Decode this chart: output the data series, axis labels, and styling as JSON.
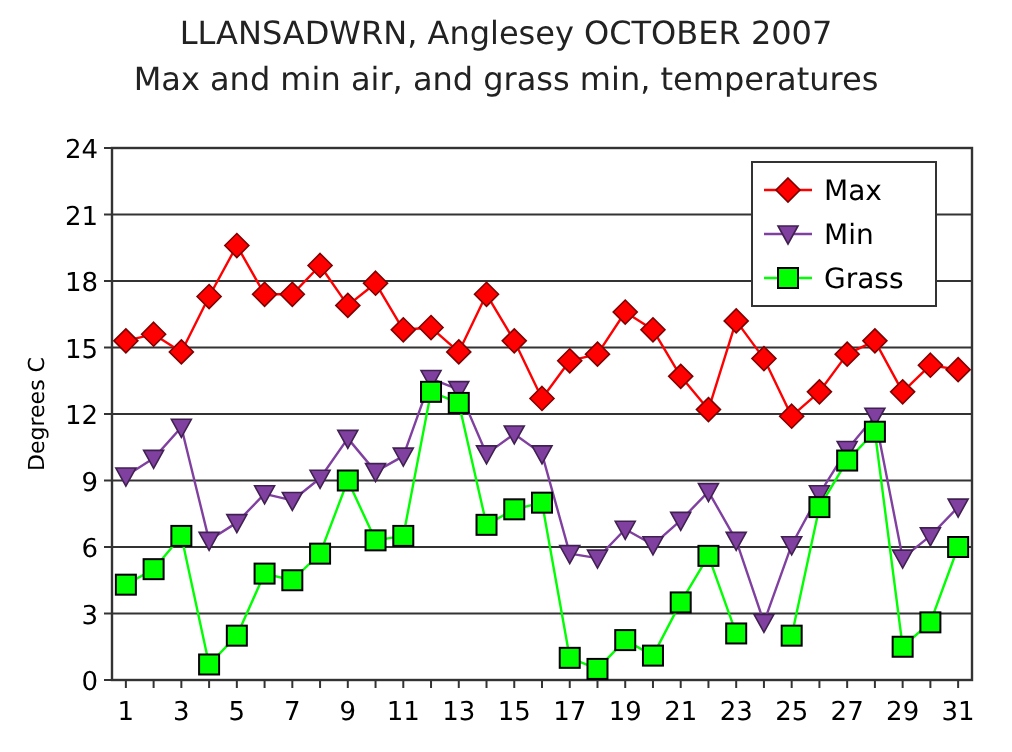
{
  "chart_data": {
    "type": "line",
    "title": "LLANSADWRN, Anglesey OCTOBER 2007",
    "subtitle": "Max and min air, and grass min, temperatures",
    "ylabel": "Degrees C",
    "x": [
      1,
      2,
      3,
      4,
      5,
      6,
      7,
      8,
      9,
      10,
      11,
      12,
      13,
      14,
      15,
      16,
      17,
      18,
      19,
      20,
      21,
      22,
      23,
      24,
      25,
      26,
      27,
      28,
      29,
      30,
      31
    ],
    "xlim": [
      0.5,
      31.5
    ],
    "xticks": [
      1,
      {
        "value": 2,
        "label": null
      },
      3,
      {
        "value": 4,
        "label": null
      },
      5,
      {
        "value": 6,
        "label": null
      },
      7,
      {
        "value": 8,
        "label": null
      },
      9,
      {
        "value": 10,
        "label": null
      },
      11,
      {
        "value": 12,
        "label": null
      },
      13,
      {
        "value": 14,
        "label": null
      },
      15,
      {
        "value": 16,
        "label": null
      },
      17,
      {
        "value": 18,
        "label": null
      },
      19,
      {
        "value": 20,
        "label": null
      },
      21,
      {
        "value": 22,
        "label": null
      },
      23,
      {
        "value": 24,
        "label": null
      },
      25,
      {
        "value": 26,
        "label": null
      },
      27,
      {
        "value": 28,
        "label": null
      },
      29,
      {
        "value": 30,
        "label": null
      },
      31
    ],
    "series": [
      {
        "name": "Max",
        "color": "#ff0000",
        "marker": "diamond",
        "values": [
          15.3,
          15.6,
          14.8,
          17.3,
          19.6,
          17.4,
          17.4,
          18.7,
          16.9,
          17.9,
          15.8,
          15.9,
          14.8,
          17.4,
          15.3,
          12.7,
          14.4,
          14.7,
          16.6,
          15.8,
          13.7,
          12.2,
          16.2,
          14.5,
          11.9,
          13.0,
          14.7,
          15.3,
          13.0,
          14.2,
          14.0
        ]
      },
      {
        "name": "Min",
        "color": "#8040a0",
        "marker": "triangle",
        "values": [
          9.2,
          10.0,
          11.4,
          6.3,
          7.1,
          8.4,
          8.1,
          9.1,
          10.9,
          9.4,
          10.1,
          13.6,
          13.1,
          10.2,
          11.1,
          10.2,
          5.7,
          5.5,
          6.8,
          6.1,
          7.2,
          8.5,
          6.3,
          2.6,
          6.1,
          8.4,
          10.4,
          11.9,
          5.5,
          6.5,
          7.8
        ]
      },
      {
        "name": "Grass",
        "color": "#00ff00",
        "marker": "square",
        "values": [
          4.3,
          5.0,
          6.5,
          0.7,
          2.0,
          4.8,
          4.5,
          5.7,
          9.0,
          6.3,
          6.5,
          13.0,
          12.5,
          7.0,
          7.7,
          8.0,
          1.0,
          0.5,
          1.8,
          1.1,
          3.5,
          5.6,
          2.1,
          null,
          2.0,
          7.8,
          9.9,
          11.2,
          1.5,
          2.6,
          6.0
        ]
      }
    ],
    "ylim": [
      0,
      24
    ],
    "yticks": [
      0,
      3,
      6,
      9,
      12,
      15,
      18,
      21,
      24
    ],
    "grid": "y",
    "legend": "top right"
  }
}
